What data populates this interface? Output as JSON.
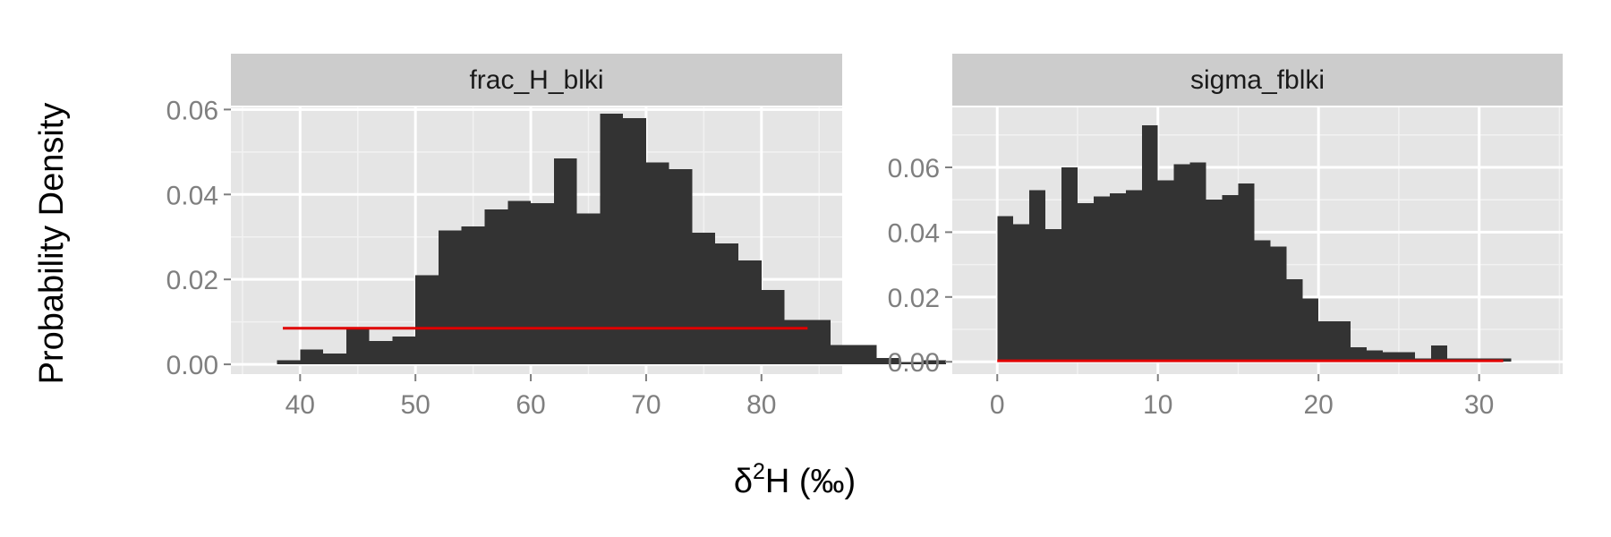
{
  "chart_data": {
    "type": "histogram",
    "ylabel": "Probability Density",
    "xlabel": {
      "base": "δ",
      "sup": "2",
      "rest": "H (‰)"
    },
    "facets": [
      {
        "strip_label": "frac_H_blki",
        "bin_width": 2,
        "bins": [
          {
            "x0": 38,
            "density": 0.001
          },
          {
            "x0": 40,
            "density": 0.0035
          },
          {
            "x0": 42,
            "density": 0.0025
          },
          {
            "x0": 44,
            "density": 0.0085
          },
          {
            "x0": 46,
            "density": 0.0055
          },
          {
            "x0": 48,
            "density": 0.0065
          },
          {
            "x0": 50,
            "density": 0.021
          },
          {
            "x0": 52,
            "density": 0.0315
          },
          {
            "x0": 54,
            "density": 0.0325
          },
          {
            "x0": 56,
            "density": 0.0365
          },
          {
            "x0": 58,
            "density": 0.0385
          },
          {
            "x0": 60,
            "density": 0.038
          },
          {
            "x0": 62,
            "density": 0.0485
          },
          {
            "x0": 64,
            "density": 0.0355
          },
          {
            "x0": 66,
            "density": 0.059
          },
          {
            "x0": 68,
            "density": 0.058
          },
          {
            "x0": 70,
            "density": 0.0475
          },
          {
            "x0": 72,
            "density": 0.046
          },
          {
            "x0": 74,
            "density": 0.031
          },
          {
            "x0": 76,
            "density": 0.0285
          },
          {
            "x0": 78,
            "density": 0.0245
          },
          {
            "x0": 80,
            "density": 0.0175
          },
          {
            "x0": 82,
            "density": 0.0105
          },
          {
            "x0": 84,
            "density": 0.0105
          },
          {
            "x0": 86,
            "density": 0.0045
          },
          {
            "x0": 88,
            "density": 0.0045
          },
          {
            "x0": 90,
            "density": 0.0015
          },
          {
            "x0": 92,
            "density": 0.0005
          },
          {
            "x0": 94,
            "density": 0.001
          },
          {
            "x0": 96,
            "density": 0.0
          }
        ],
        "reference_line": {
          "x_start": 38.5,
          "x_end": 84,
          "density": 0.0085,
          "color": "#e00000"
        },
        "xlim": [
          34,
          87
        ],
        "ylim": [
          -0.0023,
          0.0605
        ],
        "x_ticks": [
          40,
          50,
          60,
          70,
          80
        ],
        "y_ticks": [
          0,
          0.02,
          0.04,
          0.06
        ],
        "y_tick_labels": [
          "0.00",
          "0.02",
          "0.04",
          "0.06"
        ]
      },
      {
        "strip_label": "sigma_fblki",
        "bin_width": 1.0,
        "bins": [
          {
            "x0": 0,
            "density": 0.045
          },
          {
            "x0": 1,
            "density": 0.0425
          },
          {
            "x0": 2,
            "density": 0.053
          },
          {
            "x0": 3,
            "density": 0.041
          },
          {
            "x0": 4,
            "density": 0.06
          },
          {
            "x0": 5,
            "density": 0.049
          },
          {
            "x0": 6,
            "density": 0.051
          },
          {
            "x0": 7,
            "density": 0.052
          },
          {
            "x0": 8,
            "density": 0.053
          },
          {
            "x0": 9,
            "density": 0.073
          },
          {
            "x0": 10,
            "density": 0.056
          },
          {
            "x0": 11,
            "density": 0.061
          },
          {
            "x0": 12,
            "density": 0.0615
          },
          {
            "x0": 13,
            "density": 0.05
          },
          {
            "x0": 14,
            "density": 0.0515
          },
          {
            "x0": 15,
            "density": 0.055
          },
          {
            "x0": 16,
            "density": 0.0375
          },
          {
            "x0": 17,
            "density": 0.0355
          },
          {
            "x0": 18,
            "density": 0.0255
          },
          {
            "x0": 19,
            "density": 0.0195
          },
          {
            "x0": 20,
            "density": 0.0125
          },
          {
            "x0": 21,
            "density": 0.0125
          },
          {
            "x0": 22,
            "density": 0.0045
          },
          {
            "x0": 23,
            "density": 0.0035
          },
          {
            "x0": 24,
            "density": 0.003
          },
          {
            "x0": 25,
            "density": 0.003
          },
          {
            "x0": 26,
            "density": 0.001
          },
          {
            "x0": 27,
            "density": 0.005
          },
          {
            "x0": 28,
            "density": 0.001
          },
          {
            "x0": 29,
            "density": 0.001
          },
          {
            "x0": 30,
            "density": 0.001
          },
          {
            "x0": 31,
            "density": 0.001
          }
        ],
        "reference_line": {
          "x_start": 0,
          "x_end": 31.5,
          "density": 0.0003,
          "color": "#e00000"
        },
        "xlim": [
          -2.8,
          35.2
        ],
        "ylim": [
          -0.0038,
          0.0785
        ],
        "x_ticks": [
          0,
          10,
          20,
          30
        ],
        "y_ticks": [
          0,
          0.02,
          0.04,
          0.06
        ],
        "y_tick_labels": [
          "0.00",
          "0.02",
          "0.04",
          "0.06"
        ]
      }
    ],
    "colors": {
      "panel_bg": "#e5e5e5",
      "strip_bg": "#cccccc",
      "grid_major": "#ffffff",
      "grid_minor": "#f2f2f2",
      "bar_fill": "#333333",
      "tick_text": "#7f7f7f",
      "tick_mark": "#7f7f7f"
    }
  }
}
